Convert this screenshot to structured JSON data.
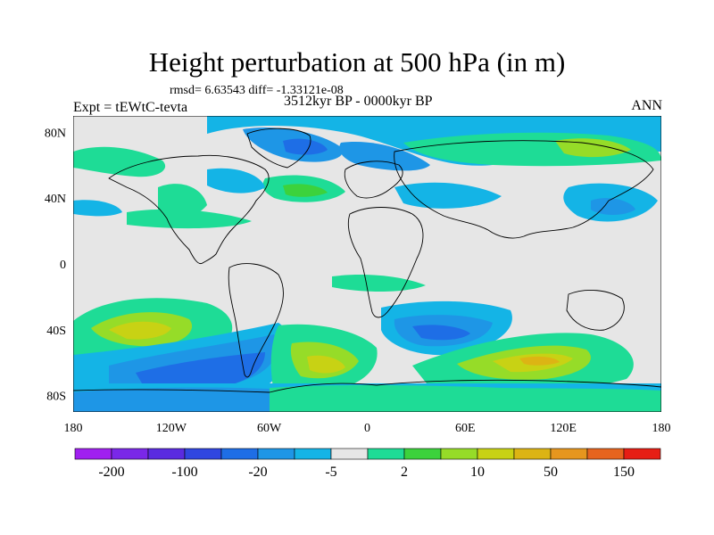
{
  "title": "Height perturbation at 500 hPa (in m)",
  "stats": "rmsd= 6.63543 diff= -1.33121e-08",
  "left_label": "Expt = tEWtC-tevta",
  "subtitle": "3512kyr BP - 0000kyr BP",
  "season": "ANN",
  "axes": {
    "lon_ticks": [
      {
        "value": -180,
        "label": "180"
      },
      {
        "value": -120,
        "label": "120W"
      },
      {
        "value": -60,
        "label": "60W"
      },
      {
        "value": 0,
        "label": "0"
      },
      {
        "value": 60,
        "label": "60E"
      },
      {
        "value": 120,
        "label": "120E"
      },
      {
        "value": 180,
        "label": "180"
      }
    ],
    "lat_ticks": [
      {
        "value": 80,
        "label": "80N"
      },
      {
        "value": 40,
        "label": "40N"
      },
      {
        "value": 0,
        "label": "0"
      },
      {
        "value": -40,
        "label": "40S"
      },
      {
        "value": -80,
        "label": "80S"
      }
    ],
    "lon_range": [
      -180,
      180
    ],
    "lat_range": [
      -90,
      90
    ]
  },
  "colorbar": {
    "colors": [
      "#a020f0",
      "#7a28e8",
      "#5a2be0",
      "#3046e0",
      "#1e6ee6",
      "#1e96e6",
      "#14b4e6",
      "#e6e6e6",
      "#1edc96",
      "#3cd23c",
      "#96dc28",
      "#c8d214",
      "#dcb414",
      "#e6961e",
      "#e6641e",
      "#e61e14"
    ],
    "labels": [
      {
        "index": 1,
        "text": "-200"
      },
      {
        "index": 3,
        "text": "-100"
      },
      {
        "index": 5,
        "text": "-20"
      },
      {
        "index": 7,
        "text": "-5"
      },
      {
        "index": 9,
        "text": "2"
      },
      {
        "index": 11,
        "text": "10"
      },
      {
        "index": 13,
        "text": "50"
      },
      {
        "index": 15,
        "text": "150"
      }
    ]
  }
}
